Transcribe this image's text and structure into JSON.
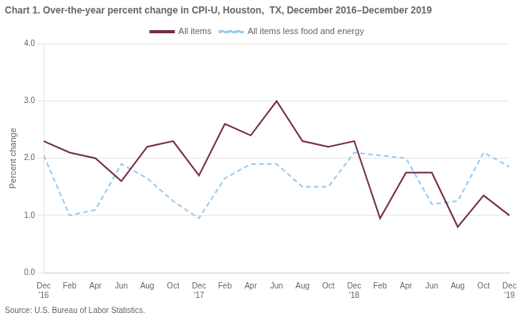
{
  "chart_data": {
    "type": "line",
    "title": "Chart 1. Over-the-year percent change in CPI-U, Houston,  TX, December 2016–December 2019",
    "ylabel": "Percent change",
    "source": "Source: U.S. Bureau of Labor Statistics.",
    "categories": [
      "Dec\n'16",
      "Feb",
      "Apr",
      "Jun",
      "Aug",
      "Oct",
      "Dec\n'17",
      "Feb",
      "Apr",
      "Jun",
      "Aug",
      "Oct",
      "Dec\n'18",
      "Feb",
      "Apr",
      "Jun",
      "Aug",
      "Oct",
      "Dec\n'19"
    ],
    "series": [
      {
        "name": "All items",
        "color": "#722F4A",
        "line_style": "solid",
        "values": [
          2.3,
          2.1,
          2.0,
          1.6,
          2.2,
          2.3,
          1.7,
          2.6,
          2.4,
          3.0,
          2.3,
          2.2,
          2.3,
          0.95,
          1.75,
          1.75,
          0.8,
          1.35,
          1.0
        ]
      },
      {
        "name": "All items less food and energy",
        "color": "#99CCEE",
        "line_style": "dashed",
        "values": [
          2.05,
          1.0,
          1.1,
          1.9,
          1.65,
          1.25,
          0.95,
          1.65,
          1.9,
          1.9,
          1.5,
          1.5,
          2.1,
          2.05,
          2.0,
          1.2,
          1.25,
          2.1,
          1.85
        ]
      }
    ],
    "ylim": [
      0.0,
      4.0
    ],
    "yticks": [
      {
        "value": 0.0,
        "label": "0.0"
      },
      {
        "value": 1.0,
        "label": "1.0"
      },
      {
        "value": 2.0,
        "label": "2.0"
      },
      {
        "value": 3.0,
        "label": "3.0"
      },
      {
        "value": 4.0,
        "label": "4.0"
      }
    ],
    "grid": "y",
    "legend": "upper center"
  }
}
